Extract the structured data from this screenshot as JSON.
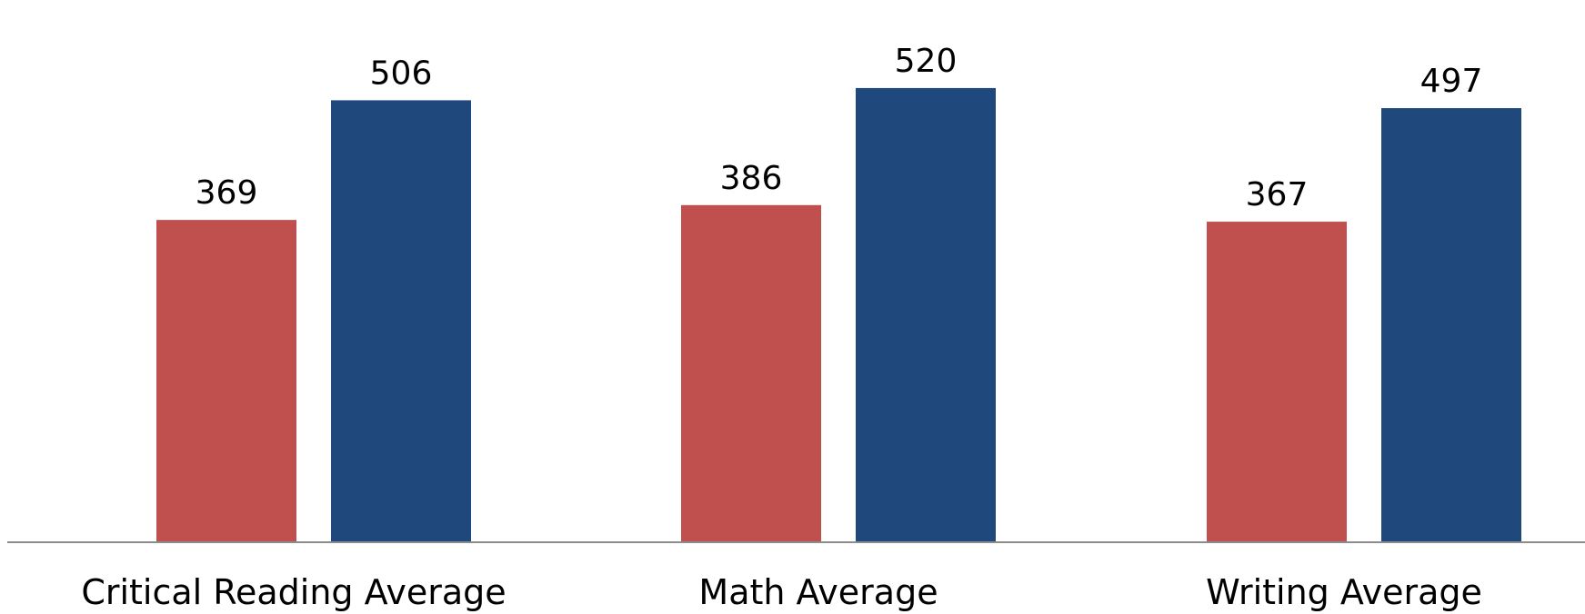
{
  "chart_data": {
    "type": "bar",
    "title": "",
    "xlabel": "",
    "ylabel": "",
    "ylim": [
      0,
      600
    ],
    "grid": false,
    "legend": "none",
    "categories": [
      "Critical Reading Average",
      "Math Average",
      "Writing Average"
    ],
    "series": [
      {
        "color": "#c0504d",
        "values": [
          369,
          386,
          367
        ]
      },
      {
        "color": "#1f497d",
        "values": [
          506,
          520,
          497
        ]
      }
    ],
    "axis_color": "#8c8c8c"
  }
}
